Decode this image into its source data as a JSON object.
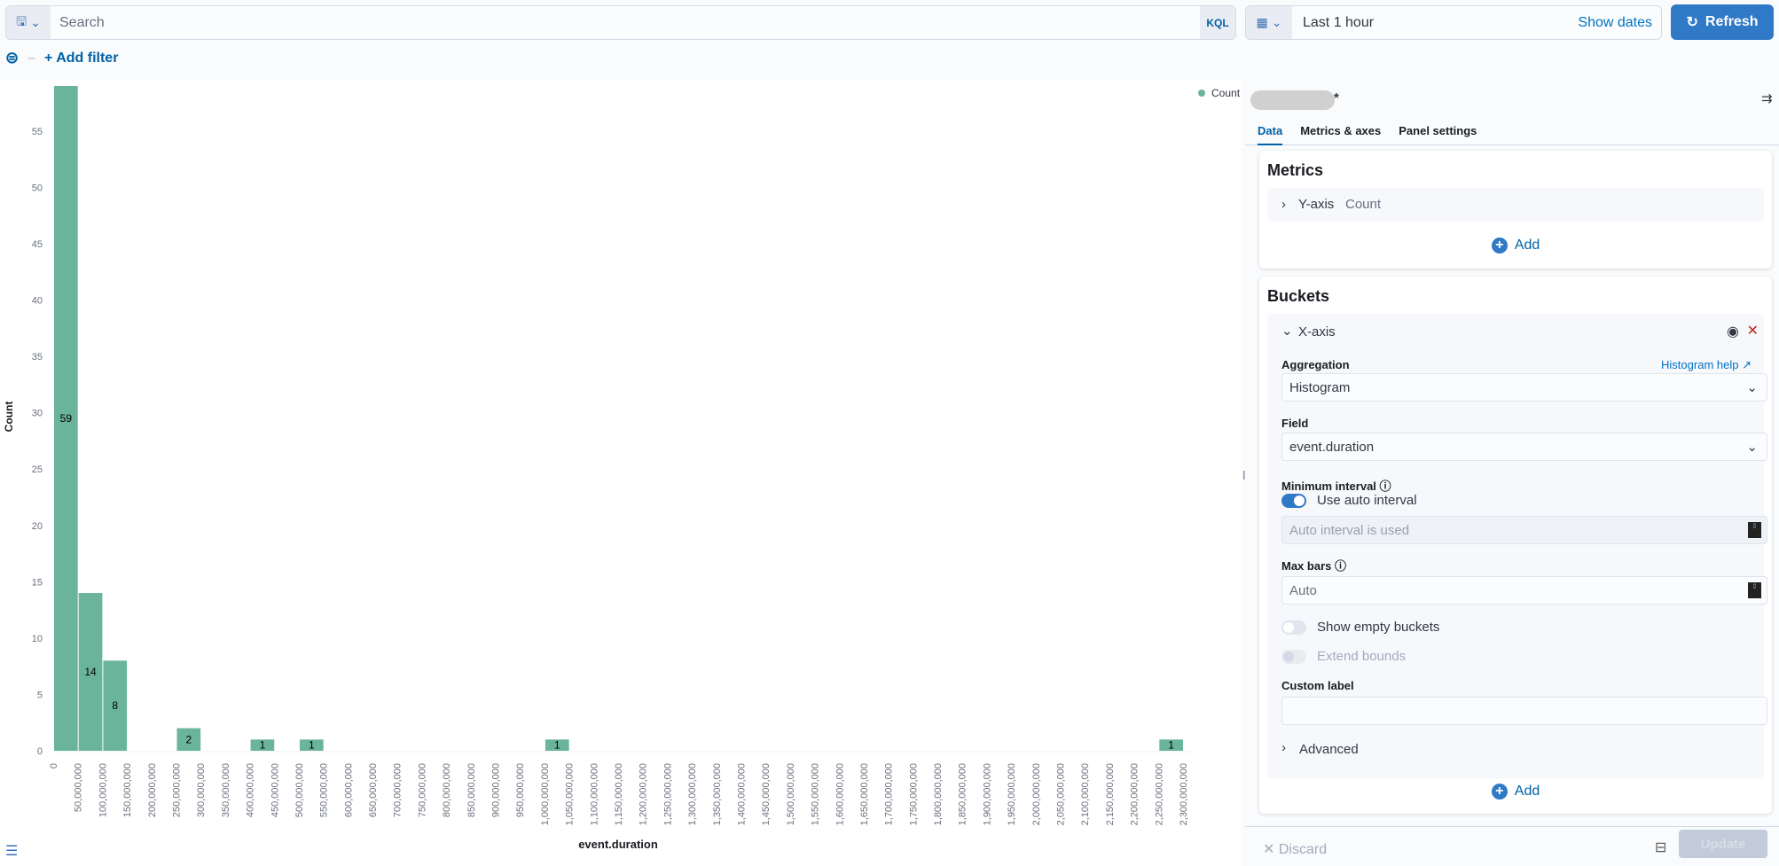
{
  "query": {
    "placeholder": "Search",
    "language": "KQL",
    "save_icon": "save-icon"
  },
  "time": {
    "value": "Last 1 hour",
    "show_dates": "Show dates",
    "refresh": "Refresh"
  },
  "filter": {
    "add": "+ Add filter"
  },
  "colors": {
    "bar": "#6ab49b",
    "accent": "#2f79c7",
    "link": "#0061a6"
  },
  "chart_data": {
    "type": "bar",
    "xlabel": "event.duration",
    "ylabel": "Count",
    "legend": [
      {
        "name": "Count",
        "color": "#6ab49b"
      }
    ],
    "legend_position": "top-right",
    "ylim": [
      0,
      59
    ],
    "yticks": [
      0,
      5,
      10,
      15,
      20,
      25,
      30,
      35,
      40,
      45,
      50,
      55
    ],
    "xlim": [
      0,
      2300000000
    ],
    "xtick_step": 50000000,
    "bars": [
      {
        "x0": 0,
        "x1": 50000000,
        "value": 59
      },
      {
        "x0": 50000000,
        "x1": 100000000,
        "value": 14
      },
      {
        "x0": 100000000,
        "x1": 150000000,
        "value": 8
      },
      {
        "x0": 250000000,
        "x1": 300000000,
        "value": 2
      },
      {
        "x0": 400000000,
        "x1": 450000000,
        "value": 1
      },
      {
        "x0": 500000000,
        "x1": 550000000,
        "value": 1
      },
      {
        "x0": 1000000000,
        "x1": 1050000000,
        "value": 1
      },
      {
        "x0": 2250000000,
        "x1": 2300000000,
        "value": 1
      }
    ]
  },
  "editor": {
    "title_suffix": "*",
    "tabs": [
      "Data",
      "Metrics & axes",
      "Panel settings"
    ],
    "metrics": {
      "title": "Metrics",
      "item_axis": "Y-axis",
      "item_agg": "Count",
      "add": "Add"
    },
    "buckets": {
      "title": "Buckets",
      "item": "X-axis",
      "aggregation_label": "Aggregation",
      "help": "Histogram help",
      "aggregation": "Histogram",
      "field_label": "Field",
      "field": "event.duration",
      "min_interval_label": "Minimum interval",
      "auto_interval": "Use auto interval",
      "auto_interval_on": true,
      "interval_placeholder": "Auto interval is used",
      "max_bars_label": "Max bars",
      "max_bars_placeholder": "Auto",
      "show_empty": "Show empty buckets",
      "show_empty_on": false,
      "extend_bounds": "Extend bounds",
      "extend_bounds_on": false,
      "custom_label": "Custom label",
      "custom_label_value": "",
      "advanced": "Advanced",
      "add": "Add"
    },
    "discard": "Discard",
    "update": "Update"
  }
}
